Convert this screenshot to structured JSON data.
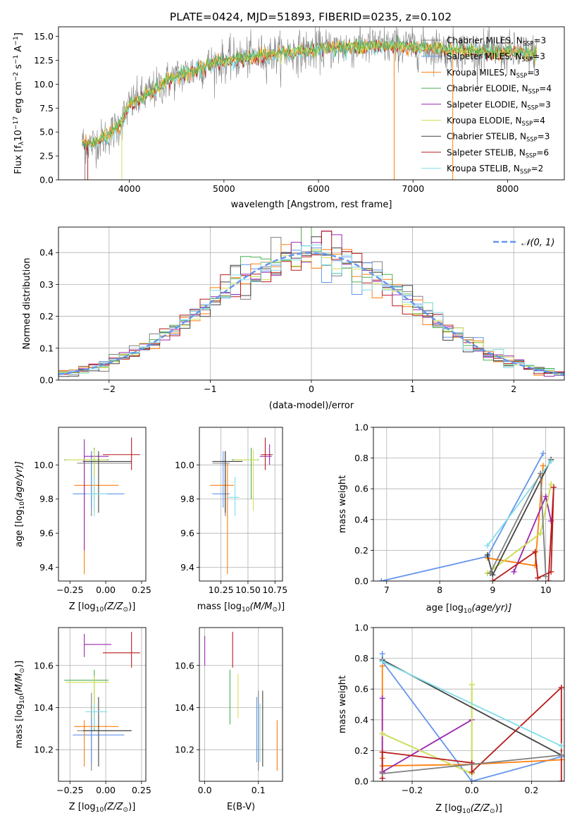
{
  "figure": {
    "title": "PLATE=0424, MJD=51893, FIBERID=0235, z=0.102"
  },
  "colors": {
    "grid": "#b0b0b0",
    "gauss": "#6495ed",
    "spectrum_data": "#808080"
  },
  "models": [
    {
      "key": "cm",
      "label": "Chabrier MILES, N",
      "sub": "SSP",
      "eq": "=3",
      "color": "#808080"
    },
    {
      "key": "sm",
      "label": "Salpeter MILES, N",
      "sub": "SSP",
      "eq": "=3",
      "color": "#6495ed"
    },
    {
      "key": "km",
      "label": "Kroupa MILES, N",
      "sub": "SSP",
      "eq": "=3",
      "color": "#ff7f0e"
    },
    {
      "key": "ce",
      "label": "Chabrier ELODIE, N",
      "sub": "SSP",
      "eq": "=4",
      "color": "#4caf50"
    },
    {
      "key": "se",
      "label": "Salpeter ELODIE, N",
      "sub": "SSP",
      "eq": "=3",
      "color": "#9c27b0"
    },
    {
      "key": "ke",
      "label": "Kroupa ELODIE, N",
      "sub": "SSP",
      "eq": "=4",
      "color": "#d4e157"
    },
    {
      "key": "cs",
      "label": "Chabrier STELIB, N",
      "sub": "SSP",
      "eq": "=3",
      "color": "#424242"
    },
    {
      "key": "ss",
      "label": "Salpeter STELIB, N",
      "sub": "SSP",
      "eq": "=6",
      "color": "#b71c1c"
    },
    {
      "key": "ks",
      "label": "Kroupa STELIB, N",
      "sub": "SSP",
      "eq": "=2",
      "color": "#80deea"
    }
  ],
  "chart_data": [
    {
      "id": "spectrum",
      "type": "line",
      "xlabel": "wavelength [Angstrom, rest frame]",
      "ylabel_parts": [
        "Flux [f",
        "λ",
        "10",
        "−17",
        " erg cm",
        "−2",
        " s",
        "−1",
        " A",
        "−1",
        "]"
      ],
      "xlim": [
        3250,
        8600
      ],
      "ylim": [
        0,
        16
      ],
      "xticks": [
        4000,
        5000,
        6000,
        7000,
        8000
      ],
      "yticks": [
        0.0,
        2.5,
        5.0,
        7.5,
        10.0,
        12.5,
        15.0
      ],
      "yticklabels": [
        "0.0",
        "2.5",
        "5.0",
        "7.5",
        "10.0",
        "12.5",
        "15.0"
      ],
      "grid": false,
      "legend": "upper right",
      "continuum": {
        "x": [
          3500,
          3600,
          3700,
          3800,
          3900,
          4000,
          4100,
          4200,
          4300,
          4400,
          4500,
          4600,
          4800,
          5000,
          5200,
          5400,
          5600,
          5800,
          6000,
          6200,
          6400,
          6600,
          6800,
          7000,
          7200,
          7400,
          7600,
          7800,
          8000,
          8200,
          8300
        ],
        "y": [
          3.9,
          3.7,
          4.2,
          4.8,
          5.8,
          7.8,
          8.4,
          9.0,
          9.6,
          10.3,
          10.8,
          11.1,
          11.9,
          12.4,
          12.7,
          13.0,
          13.2,
          13.4,
          13.6,
          13.8,
          13.9,
          14.0,
          14.0,
          13.9,
          13.8,
          13.6,
          13.5,
          13.3,
          13.3,
          13.2,
          13.1
        ]
      }
    },
    {
      "id": "residuals",
      "type": "bar",
      "xlabel": "(data-model)/error",
      "ylabel": "Normed distribution",
      "xlim": [
        -2.5,
        2.5
      ],
      "ylim": [
        0,
        0.48
      ],
      "xticks": [
        -2,
        -1,
        0,
        1,
        2
      ],
      "xticklabels": [
        "−2",
        "−1",
        "0",
        "1",
        "2"
      ],
      "yticks": [
        0.0,
        0.1,
        0.2,
        0.3,
        0.4
      ],
      "yticklabels": [
        "0.0",
        "0.1",
        "0.2",
        "0.3",
        "0.4"
      ],
      "grid": true,
      "legend": "upper right",
      "gauss_label": "𝒩(0, 1)",
      "bin_width": 0.1,
      "bin_start": -2.5
    },
    {
      "id": "age-vs-Z",
      "type": "scatter",
      "xlabel_parts": [
        "Z [log",
        "10",
        "(Z/Z",
        "⊙",
        ")]"
      ],
      "ylabel_parts": [
        "age  [log",
        "10",
        "(age/yr)]"
      ],
      "xlim": [
        -0.33,
        0.28
      ],
      "ylim": [
        9.32,
        10.22
      ],
      "xticks": [
        -0.25,
        0.0,
        0.25
      ],
      "xticklabels": [
        "−0.25",
        "0.00",
        "0.25"
      ],
      "yticks": [
        9.4,
        9.6,
        9.8,
        10.0
      ],
      "yticklabels": [
        "9.4",
        "9.6",
        "9.8",
        "10.0"
      ],
      "grid": false,
      "points": [
        {
          "m": "cm",
          "x": -0.1,
          "y": 10.01,
          "xe": [
            -0.2,
            0.18
          ],
          "ye": [
            9.7,
            10.08
          ]
        },
        {
          "m": "sm",
          "x": -0.1,
          "y": 9.83,
          "xe": [
            -0.23,
            0.13
          ],
          "ye": [
            9.75,
            10.08
          ]
        },
        {
          "m": "km",
          "x": -0.15,
          "y": 9.88,
          "xe": [
            -0.22,
            0.09
          ],
          "ye": [
            9.36,
            10.01
          ]
        },
        {
          "m": "ce",
          "x": -0.08,
          "y": 10.03,
          "xe": [
            -0.29,
            0.02
          ],
          "ye": [
            9.8,
            10.1
          ]
        },
        {
          "m": "se",
          "x": -0.15,
          "y": 10.05,
          "xe": [
            -0.15,
            0.02
          ],
          "ye": [
            9.5,
            10.15
          ]
        },
        {
          "m": "ke",
          "x": -0.08,
          "y": 10.03,
          "xe": [
            -0.28,
            0.01
          ],
          "ye": [
            9.73,
            10.09
          ]
        },
        {
          "m": "cs",
          "x": -0.05,
          "y": 10.02,
          "xe": [
            -0.16,
            0.18
          ],
          "ye": [
            9.72,
            10.08
          ]
        },
        {
          "m": "ss",
          "x": 0.18,
          "y": 10.06,
          "xe": [
            -0.02,
            0.24
          ],
          "ye": [
            9.97,
            10.16
          ]
        },
        {
          "m": "ks",
          "x": -0.08,
          "y": 9.83,
          "xe": [
            -0.14,
            0.01
          ],
          "ye": [
            9.7,
            9.93
          ]
        }
      ]
    },
    {
      "id": "age-vs-mass",
      "type": "scatter",
      "xlabel_parts": [
        "mass [log",
        "10",
        "(M/M",
        "⊙",
        ")]"
      ],
      "xlim": [
        10.05,
        10.82
      ],
      "ylim": [
        9.32,
        10.22
      ],
      "xticks": [
        10.25,
        10.5,
        10.75
      ],
      "xticklabels": [
        "10.25",
        "10.50",
        "10.75"
      ],
      "yticks": [
        9.4,
        9.6,
        9.8,
        10.0
      ],
      "yticklabels": [
        "9.4",
        "9.6",
        "9.8",
        "10.0"
      ],
      "grid": true,
      "points": [
        {
          "m": "cm",
          "x": 10.29,
          "y": 10.01,
          "xe": [
            10.17,
            10.33
          ],
          "ye": [
            9.7,
            10.08
          ]
        },
        {
          "m": "sm",
          "x": 10.27,
          "y": 9.83,
          "xe": [
            10.17,
            10.33
          ],
          "ye": [
            9.75,
            10.08
          ]
        },
        {
          "m": "km",
          "x": 10.31,
          "y": 9.88,
          "xe": [
            10.15,
            10.37
          ],
          "ye": [
            9.36,
            10.01
          ]
        },
        {
          "m": "ce",
          "x": 10.53,
          "y": 10.03,
          "xe": [
            10.35,
            10.6
          ],
          "ye": [
            9.8,
            10.1
          ]
        },
        {
          "m": "se",
          "x": 10.7,
          "y": 10.05,
          "xe": [
            10.61,
            10.72
          ],
          "ye": [
            10.0,
            10.12
          ]
        },
        {
          "m": "ke",
          "x": 10.55,
          "y": 10.03,
          "xe": [
            10.37,
            10.59
          ],
          "ye": [
            9.73,
            10.09
          ]
        },
        {
          "m": "cs",
          "x": 10.29,
          "y": 10.02,
          "xe": [
            10.17,
            10.45
          ],
          "ye": [
            9.72,
            10.08
          ]
        },
        {
          "m": "ss",
          "x": 10.66,
          "y": 10.06,
          "xe": [
            10.62,
            10.73
          ],
          "ye": [
            9.97,
            10.16
          ]
        },
        {
          "m": "ks",
          "x": 10.38,
          "y": 9.81,
          "xe": [
            10.31,
            10.42
          ],
          "ye": [
            9.7,
            9.93
          ]
        }
      ]
    },
    {
      "id": "weight-vs-age",
      "type": "line",
      "xlabel_parts": [
        "age  [log",
        "10",
        "(age/yr)]"
      ],
      "ylabel": "mass weight",
      "xlim": [
        6.75,
        10.35
      ],
      "ylim": [
        0,
        1
      ],
      "xticks": [
        7,
        8,
        9,
        10
      ],
      "xticklabels": [
        "7",
        "8",
        "9",
        "10"
      ],
      "yticks": [
        0.0,
        0.2,
        0.4,
        0.6,
        0.8,
        1.0
      ],
      "yticklabels": [
        "0.0",
        "0.2",
        "0.4",
        "0.6",
        "0.8",
        "1.0"
      ],
      "grid": true,
      "series": [
        {
          "m": "sm",
          "x": [
            6.9,
            8.9,
            9.95
          ],
          "y": [
            0.0,
            0.16,
            0.83
          ]
        },
        {
          "m": "km",
          "x": [
            8.9,
            9.8,
            9.95
          ],
          "y": [
            0.15,
            0.1,
            0.75
          ]
        },
        {
          "m": "ce",
          "x": [
            8.9,
            9.9,
            10.1
          ],
          "y": [
            0.05,
            0.31,
            0.63
          ]
        },
        {
          "m": "se",
          "x": [
            9.4,
            10.0,
            10.1
          ],
          "y": [
            0.06,
            0.55,
            0.39
          ]
        },
        {
          "m": "ke",
          "x": [
            8.9,
            9.9,
            10.1
          ],
          "y": [
            0.05,
            0.31,
            0.63
          ]
        },
        {
          "m": "cs",
          "x": [
            8.9,
            9.0,
            10.1
          ],
          "y": [
            0.17,
            0.04,
            0.79
          ]
        },
        {
          "m": "ss",
          "x": [
            9.0,
            9.8,
            9.85,
            10.1,
            10.15,
            10.05
          ],
          "y": [
            0.0,
            0.19,
            0.02,
            0.06,
            0.61,
            0.0
          ]
        },
        {
          "m": "ks",
          "x": [
            8.9,
            10.1
          ],
          "y": [
            0.23,
            0.78
          ]
        },
        {
          "m": "cm",
          "x": [
            8.95,
            9.9,
            10.0
          ],
          "y": [
            0.05,
            0.7,
            0.03
          ]
        }
      ]
    },
    {
      "id": "mass-vs-Z",
      "type": "scatter",
      "xlabel_parts": [
        "Z [log",
        "10",
        "(Z/Z",
        "⊙",
        ")]"
      ],
      "ylabel_parts": [
        "mass [log",
        "10",
        "(M/M",
        "⊙",
        ")]"
      ],
      "xlim": [
        -0.33,
        0.28
      ],
      "ylim": [
        10.05,
        10.78
      ],
      "xticks": [
        -0.25,
        0.0,
        0.25
      ],
      "xticklabels": [
        "−0.25",
        "0.00",
        "0.25"
      ],
      "yticks": [
        10.2,
        10.4,
        10.6
      ],
      "yticklabels": [
        "10.2",
        "10.4",
        "10.6"
      ],
      "grid": true,
      "points": [
        {
          "m": "cm",
          "x": -0.1,
          "y": 10.29,
          "xe": [
            -0.2,
            0.18
          ],
          "ye": [
            10.1,
            10.47
          ]
        },
        {
          "m": "sm",
          "x": -0.1,
          "y": 10.27,
          "xe": [
            -0.23,
            0.13
          ],
          "ye": [
            10.14,
            10.35
          ]
        },
        {
          "m": "km",
          "x": -0.15,
          "y": 10.31,
          "xe": [
            -0.22,
            0.09
          ],
          "ye": [
            10.12,
            10.34
          ]
        },
        {
          "m": "ce",
          "x": -0.08,
          "y": 10.53,
          "xe": [
            -0.29,
            0.02
          ],
          "ye": [
            10.29,
            10.58
          ]
        },
        {
          "m": "se",
          "x": -0.15,
          "y": 10.7,
          "xe": [
            -0.15,
            0.04
          ],
          "ye": [
            10.64,
            10.75
          ]
        },
        {
          "m": "ke",
          "x": -0.08,
          "y": 10.52,
          "xe": [
            -0.28,
            0.02
          ],
          "ye": [
            10.34,
            10.55
          ]
        },
        {
          "m": "cs",
          "x": -0.05,
          "y": 10.29,
          "xe": [
            -0.16,
            0.18
          ],
          "ye": [
            10.12,
            10.45
          ]
        },
        {
          "m": "ss",
          "x": 0.18,
          "y": 10.66,
          "xe": [
            -0.02,
            0.24
          ],
          "ye": [
            10.59,
            10.76
          ]
        },
        {
          "m": "ks",
          "x": -0.08,
          "y": 10.38,
          "xe": [
            -0.14,
            0.01
          ],
          "ye": [
            10.3,
            10.42
          ]
        }
      ]
    },
    {
      "id": "mass-vs-EBV",
      "type": "scatter",
      "xlabel": "E(B-V)",
      "xlim": [
        -0.01,
        0.145
      ],
      "ylim": [
        10.05,
        10.78
      ],
      "xticks": [
        0.0,
        0.1
      ],
      "xticklabels": [
        "0.0",
        "0.1"
      ],
      "yticks": [
        10.2,
        10.4,
        10.6
      ],
      "yticklabels": [
        "10.2",
        "10.4",
        "10.6"
      ],
      "grid": true,
      "points": [
        {
          "m": "se",
          "x": 0.0,
          "ye": [
            10.6,
            10.74
          ]
        },
        {
          "m": "ce",
          "x": 0.047,
          "ye": [
            10.32,
            10.58
          ]
        },
        {
          "m": "ss",
          "x": 0.052,
          "ye": [
            10.59,
            10.76
          ]
        },
        {
          "m": "ke",
          "x": 0.062,
          "ye": [
            10.35,
            10.56
          ]
        },
        {
          "m": "sm",
          "x": 0.097,
          "ye": [
            10.14,
            10.45
          ]
        },
        {
          "m": "cm",
          "x": 0.1,
          "ye": [
            10.1,
            10.48
          ]
        },
        {
          "m": "ks",
          "x": 0.103,
          "ye": [
            10.14,
            10.42
          ]
        },
        {
          "m": "cs",
          "x": 0.108,
          "ye": [
            10.12,
            10.48
          ]
        },
        {
          "m": "km",
          "x": 0.135,
          "ye": [
            10.1,
            10.34
          ]
        }
      ]
    },
    {
      "id": "weight-vs-Z",
      "type": "line",
      "xlabel_parts": [
        "Z [log",
        "10",
        "(Z/Z",
        "⊙",
        ")]"
      ],
      "ylabel": "mass weight",
      "xlim": [
        -0.33,
        0.31
      ],
      "ylim": [
        0,
        1
      ],
      "xticks": [
        -0.2,
        0.0,
        0.2
      ],
      "xticklabels": [
        "−0.2",
        "0.0",
        "0.2"
      ],
      "yticks": [
        0.0,
        0.2,
        0.4,
        0.6,
        0.8,
        1.0
      ],
      "yticklabels": [
        "0.0",
        "0.2",
        "0.4",
        "0.6",
        "0.8",
        "1.0"
      ],
      "grid": true,
      "series": [
        {
          "m": "sm",
          "x": [
            -0.3,
            -0.3,
            0.0,
            0.3
          ],
          "y": [
            0.83,
            0.78,
            0.0,
            0.16
          ]
        },
        {
          "m": "km",
          "x": [
            -0.3,
            -0.3,
            -0.3,
            0.0,
            0.3
          ],
          "y": [
            0.75,
            0.15,
            0.1,
            0.11,
            0.14
          ]
        },
        {
          "m": "ce",
          "x": [
            -0.3,
            0.0,
            0.0
          ],
          "y": [
            0.31,
            0.05,
            0.63
          ]
        },
        {
          "m": "se",
          "x": [
            -0.3,
            -0.3,
            -0.3,
            0.0
          ],
          "y": [
            0.54,
            0.06,
            0.06,
            0.4
          ]
        },
        {
          "m": "ke",
          "x": [
            -0.3,
            0.0,
            0.0
          ],
          "y": [
            0.31,
            0.05,
            0.63
          ]
        },
        {
          "m": "cs",
          "x": [
            -0.3,
            0.3
          ],
          "y": [
            0.79,
            0.17
          ]
        },
        {
          "m": "ss",
          "x": [
            -0.3,
            -0.3,
            0.0,
            0.0,
            0.3,
            0.3
          ],
          "y": [
            0.02,
            0.19,
            0.12,
            0.06,
            0.61,
            0.0
          ]
        },
        {
          "m": "ks",
          "x": [
            -0.3,
            0.3
          ],
          "y": [
            0.78,
            0.23
          ]
        },
        {
          "m": "cm",
          "x": [
            -0.3,
            0.3
          ],
          "y": [
            0.05,
            0.17
          ]
        }
      ]
    }
  ]
}
